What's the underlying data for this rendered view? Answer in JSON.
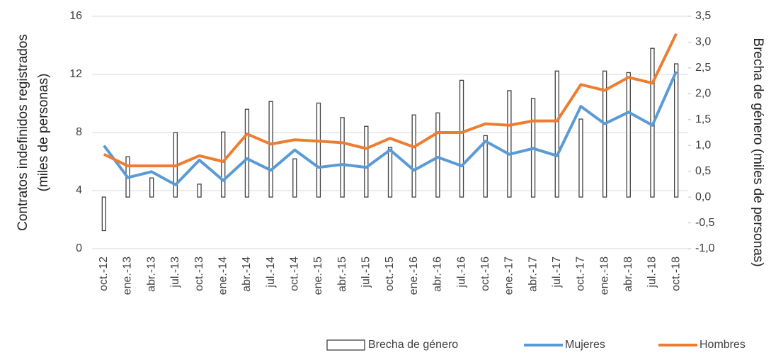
{
  "chart_data": {
    "type": "combo",
    "ylabel": [
      "Contratos indefinidos registrados",
      "(miles de personas)"
    ],
    "y2label": "Brecha de género (miles de personas)",
    "categories": [
      "oct.-12",
      "ene.-13",
      "abr.-13",
      "jul.-13",
      "oct.-13",
      "ene.-14",
      "abr.-14",
      "jul.-14",
      "oct.-14",
      "ene.-15",
      "abr.-15",
      "jul.-15",
      "oct.-15",
      "ene.-16",
      "abr.-16",
      "jul.-16",
      "oct.-16",
      "ene.-17",
      "abr.-17",
      "jul.-17",
      "oct.-17",
      "ene.-18",
      "abr.-18",
      "jul.-18",
      "oct.-18"
    ],
    "series": [
      {
        "name": "Brecha de género",
        "type": "bar",
        "axis": "y2",
        "color": "#404040",
        "values": [
          -0.65,
          0.78,
          0.37,
          1.25,
          0.25,
          1.26,
          1.7,
          1.85,
          0.74,
          1.82,
          1.54,
          1.37,
          0.96,
          1.59,
          1.63,
          2.26,
          1.19,
          2.06,
          1.91,
          2.44,
          1.51,
          2.44,
          2.41,
          2.88,
          2.58
        ]
      },
      {
        "name": "Mujeres",
        "type": "line",
        "color": "#5b9bd5",
        "values": [
          7.1,
          4.9,
          5.3,
          4.4,
          6.1,
          4.7,
          6.2,
          5.4,
          6.8,
          5.6,
          5.8,
          5.6,
          6.8,
          5.4,
          6.3,
          5.7,
          7.4,
          6.5,
          6.9,
          6.4,
          9.8,
          8.6,
          9.4,
          8.5,
          12.2
        ]
      },
      {
        "name": "Hombres",
        "type": "line",
        "color": "#ed7d31",
        "values": [
          6.5,
          5.7,
          5.7,
          5.7,
          6.4,
          6.0,
          7.9,
          7.2,
          7.5,
          7.4,
          7.3,
          6.9,
          7.6,
          7.0,
          8.0,
          8.0,
          8.6,
          8.5,
          8.8,
          8.8,
          11.3,
          10.9,
          11.8,
          11.4,
          14.8
        ]
      }
    ],
    "ylim": [
      0,
      16
    ],
    "yticks": [
      0,
      4,
      8,
      12,
      16
    ],
    "y2lim": [
      -1,
      3.5
    ],
    "y2ticks": [
      {
        "value": -1,
        "label": "-1,0"
      },
      {
        "value": -0.5,
        "label": "-0,5"
      },
      {
        "value": 0,
        "label": "0,0"
      },
      {
        "value": 0.5,
        "label": "0,5"
      },
      {
        "value": 1,
        "label": "1,0"
      },
      {
        "value": 1.5,
        "label": "1,5"
      },
      {
        "value": 2,
        "label": "2,0"
      },
      {
        "value": 2.5,
        "label": "2,5"
      },
      {
        "value": 3,
        "label": "3,0"
      },
      {
        "value": 3.5,
        "label": "3,5"
      }
    ],
    "grid": true,
    "legend": "bottom"
  }
}
